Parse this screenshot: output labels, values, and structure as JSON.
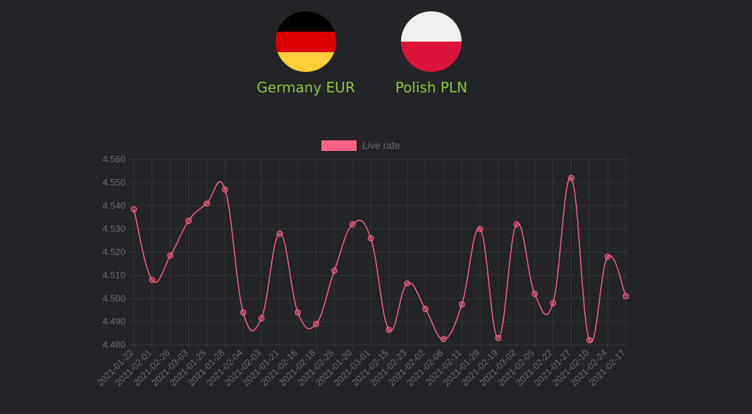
{
  "currencies": {
    "from": {
      "label": "Germany EUR",
      "icon": "germany-flag-icon",
      "colors": [
        "#000000",
        "#dd0000",
        "#ffce3a"
      ]
    },
    "to": {
      "label": "Polish PLN",
      "icon": "poland-flag-icon",
      "colors": [
        "#f0f0f0",
        "#dc143c"
      ]
    }
  },
  "accent_color": "#8cc63f",
  "chart_data": {
    "type": "line",
    "legend": [
      "Live rate"
    ],
    "legend_position": "top-center",
    "series_color": "#ff6384",
    "grid": true,
    "ylim": [
      4.48,
      4.56
    ],
    "yticks": [
      "4.560",
      "4.550",
      "4.540",
      "4.530",
      "4.520",
      "4.510",
      "4.500",
      "4.490",
      "4.480"
    ],
    "categories": [
      "2021-01-22",
      "2021-02-01",
      "2021-02-26",
      "2021-03-03",
      "2021-01-25",
      "2021-01-28",
      "2021-02-04",
      "2021-02-03",
      "2021-01-21",
      "2021-02-16",
      "2021-02-18",
      "2021-02-25",
      "2021-01-20",
      "2021-03-01",
      "2021-02-15",
      "2021-02-23",
      "2021-02-02",
      "2021-02-08",
      "2021-02-11",
      "2021-01-29",
      "2021-02-19",
      "2021-03-02",
      "2021-02-05",
      "2021-02-22",
      "2021-01-27",
      "2021-02-10",
      "2021-02-24",
      "2021-02-17"
    ],
    "series": [
      {
        "name": "Live rate",
        "values": [
          4.5385,
          4.508,
          4.5185,
          4.5335,
          4.541,
          4.547,
          4.494,
          4.4915,
          4.528,
          4.494,
          4.489,
          4.512,
          4.532,
          4.526,
          4.4865,
          4.5065,
          4.4955,
          4.4825,
          4.4975,
          4.53,
          4.483,
          4.532,
          4.502,
          4.498,
          4.552,
          4.482,
          4.518,
          4.501
        ]
      }
    ]
  }
}
